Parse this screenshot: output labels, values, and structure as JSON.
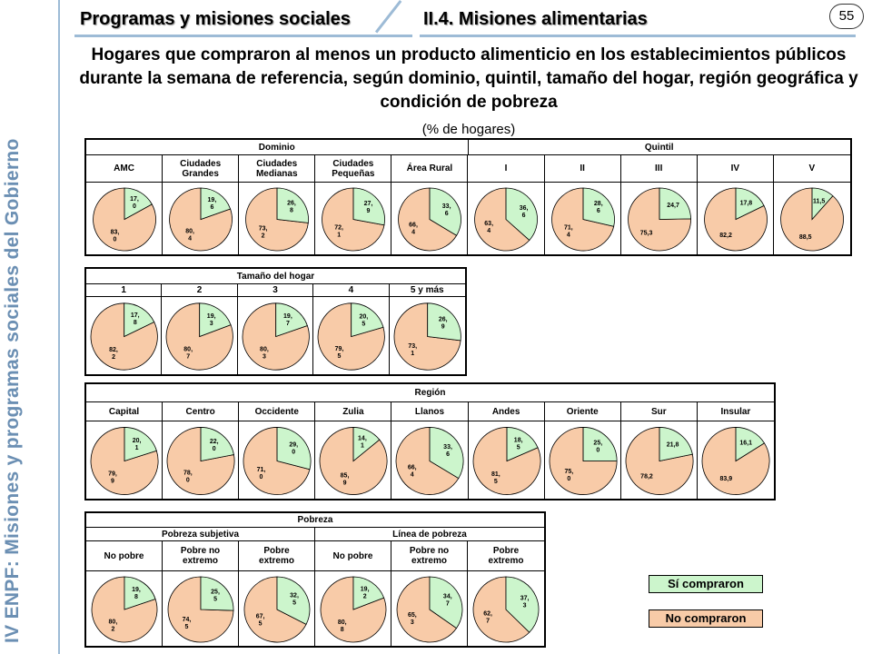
{
  "sidebar": {
    "text": "IV ENPF:  Misiones y programas sociales del Gobierno"
  },
  "header": {
    "section": "Programas y misiones sociales",
    "subsection": "II.4. Misiones alimentarias",
    "page_number": "55"
  },
  "title": "Hogares que compraron al menos un producto alimenticio en los establecimientos públicos durante la semana de referencia, según dominio, quintil, tamaño del hogar, región geográfica y condición de pobreza",
  "subtitle": "(% de hogares)",
  "colors": {
    "compraron": "#ccf5cc",
    "no_compraron": "#f8cba8",
    "border": "#000000"
  },
  "legend": {
    "si": "Sí compraron",
    "no": "No compraron"
  },
  "chart_data": [
    {
      "type": "pie",
      "groups": [
        {
          "label": "Dominio",
          "span": 5
        },
        {
          "label": "Quintil",
          "span": 5
        }
      ],
      "categories": [
        "AMC",
        "Ciudades\nGrandes",
        "Ciudades\nMedianas",
        "Ciudades\nPequeñas",
        "Área Rural",
        "I",
        "II",
        "III",
        "IV",
        "V"
      ],
      "series": [
        {
          "name": "Sí compraron",
          "values": [
            17.0,
            19.6,
            26.8,
            27.9,
            33.6,
            36.6,
            28.6,
            24.7,
            17.8,
            11.5
          ],
          "labels": [
            "17,\n0",
            "19,\n6",
            "26,\n8",
            "27,\n9",
            "33,\n6",
            "36,\n6",
            "28,\n6",
            "24,7",
            "17,8",
            "11,5"
          ]
        },
        {
          "name": "No compraron",
          "values": [
            83.0,
            80.4,
            73.2,
            72.1,
            66.4,
            63.4,
            71.4,
            75.3,
            82.2,
            88.5
          ],
          "labels": [
            "83,\n0",
            "80,\n4",
            "73,\n2",
            "72,\n1",
            "66,\n4",
            "63,\n4",
            "71,\n4",
            "75,3",
            "82,2",
            "88,5"
          ]
        }
      ]
    },
    {
      "type": "pie",
      "groups": [
        {
          "label": "Tamaño del hogar",
          "span": 5
        }
      ],
      "categories": [
        "1",
        "2",
        "3",
        "4",
        "5 y más"
      ],
      "series": [
        {
          "name": "Sí compraron",
          "values": [
            17.8,
            19.3,
            19.7,
            20.5,
            26.9
          ],
          "labels": [
            "17,\n8",
            "19,\n3",
            "19,\n7",
            "20,\n5",
            "26,\n9"
          ]
        },
        {
          "name": "No compraron",
          "values": [
            82.2,
            80.7,
            80.3,
            79.5,
            73.1
          ],
          "labels": [
            "82,\n2",
            "80,\n7",
            "80,\n3",
            "79,\n5",
            "73,\n1"
          ]
        }
      ]
    },
    {
      "type": "pie",
      "groups": [
        {
          "label": "Región",
          "span": 9
        }
      ],
      "categories": [
        "Capital",
        "Centro",
        "Occidente",
        "Zulia",
        "Llanos",
        "Andes",
        "Oriente",
        "Sur",
        "Insular"
      ],
      "series": [
        {
          "name": "Sí compraron",
          "values": [
            20.1,
            22.0,
            29.0,
            14.1,
            33.6,
            18.5,
            25.0,
            21.8,
            16.1
          ],
          "labels": [
            "20,\n1",
            "22,\n0",
            "29,\n0",
            "14,\n1",
            "33,\n6",
            "18,\n5",
            "25,\n0",
            "21,8",
            "16,1"
          ]
        },
        {
          "name": "No compraron",
          "values": [
            79.9,
            78.0,
            71.0,
            85.9,
            66.4,
            81.5,
            75.0,
            78.2,
            83.9
          ],
          "labels": [
            "79,\n9",
            "78,\n0",
            "71,\n0",
            "85,\n9",
            "66,\n4",
            "81,\n5",
            "75,\n0",
            "78,2",
            "83,9"
          ]
        }
      ]
    },
    {
      "type": "pie",
      "top_label": "Pobreza",
      "groups": [
        {
          "label": "Pobreza subjetiva",
          "span": 3
        },
        {
          "label": "Línea de pobreza",
          "span": 3
        }
      ],
      "categories": [
        "No pobre",
        "Pobre no\nextremo",
        "Pobre\nextremo",
        "No pobre",
        "Pobre no\nextremo",
        "Pobre\nextremo"
      ],
      "series": [
        {
          "name": "Sí compraron",
          "values": [
            19.8,
            25.5,
            32.5,
            19.2,
            34.7,
            37.3
          ],
          "labels": [
            "19,\n8",
            "25,\n5",
            "32,\n5",
            "19,\n2",
            "34,\n7",
            "37,\n3"
          ]
        },
        {
          "name": "No compraron",
          "values": [
            80.2,
            74.5,
            67.5,
            80.8,
            65.3,
            62.7
          ],
          "labels": [
            "80,\n2",
            "74,\n5",
            "67,\n5",
            "80,\n8",
            "65,\n3",
            "62,\n7"
          ]
        }
      ]
    }
  ]
}
